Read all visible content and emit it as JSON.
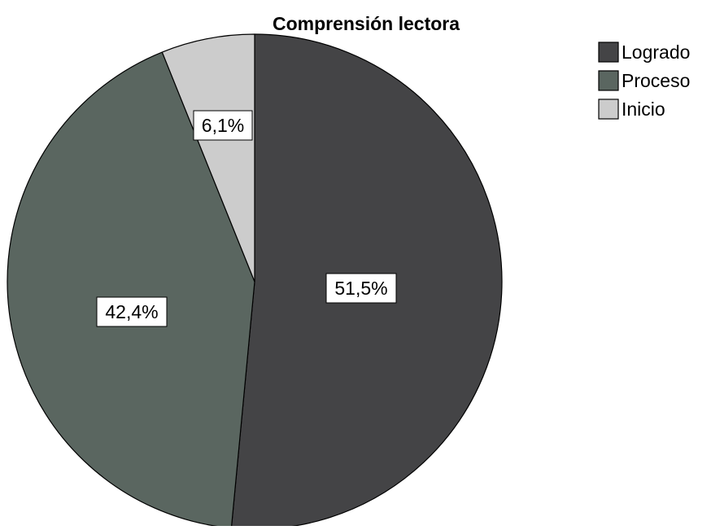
{
  "chart_data": {
    "type": "pie",
    "title": "Comprensión lectora",
    "slices": [
      {
        "label": "Logrado",
        "value": 51.5,
        "display": "51,5%",
        "color": "#444446"
      },
      {
        "label": "Proceso",
        "value": 42.4,
        "display": "42,4%",
        "color": "#5a6660"
      },
      {
        "label": "Inicio",
        "value": 6.1,
        "display": "6,1%",
        "color": "#cccccc"
      }
    ],
    "start_angle": "12 o'clock",
    "direction": "clockwise",
    "legend_position": "top-right"
  }
}
